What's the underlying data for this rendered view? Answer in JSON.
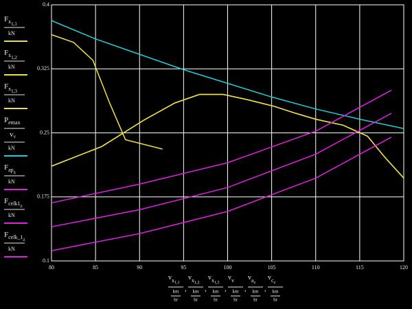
{
  "chart_data": {
    "type": "line",
    "background": "#000000",
    "grid": true,
    "grid_color": "#ffffff",
    "xlim": [
      80,
      120
    ],
    "xticks": [
      80,
      85,
      90,
      95,
      100,
      105,
      110,
      115,
      120
    ],
    "ylim": [
      0.1,
      0.4
    ],
    "yticks": [
      0.1,
      0.175,
      0.25,
      0.325,
      0.4
    ],
    "x_label": [
      {
        "name": "v",
        "subscript": "x",
        "sub_subscript": "1,1",
        "unit_top": "km",
        "unit_bottom": "hr"
      },
      {
        "name": "v",
        "subscript": "x",
        "sub_subscript": "1,2",
        "unit_top": "km",
        "unit_bottom": "hr"
      },
      {
        "name": "v",
        "subscript": "x",
        "sub_subscript": "1,3",
        "unit_top": "km",
        "unit_bottom": "hr"
      },
      {
        "name": "v",
        "subscript": "v",
        "unit_top": "km",
        "unit_bottom": "hr"
      },
      {
        "name": "v",
        "subscript": "a",
        "sub_subscript": "z",
        "unit_top": "km",
        "unit_bottom": "hr"
      },
      {
        "name": "v",
        "subscript": "c",
        "sub_subscript": "z",
        "unit_top": "km",
        "unit_bottom": "hr"
      }
    ],
    "x_label_separator": ",",
    "series": [
      {
        "name": "F",
        "subscript": "x",
        "sub_subscript": "1,1",
        "unit": "kN",
        "color": "#f0e040",
        "x": [
          80,
          82.5,
          84.7,
          86.6,
          88.4,
          92.6
        ],
        "values": [
          0.365,
          0.356,
          0.335,
          0.285,
          0.242,
          0.231
        ]
      },
      {
        "name": "F",
        "subscript": "x",
        "sub_subscript": "1,2",
        "unit": "kN",
        "color": "#f0e040",
        "x": [
          80,
          85.7,
          90.5,
          94,
          96.8,
          99.5,
          102.2,
          105.3,
          107.7,
          110,
          113.1,
          115.9,
          117.8,
          120
        ],
        "values": [
          0.211,
          0.234,
          0.265,
          0.285,
          0.295,
          0.295,
          0.289,
          0.281,
          0.273,
          0.266,
          0.259,
          0.246,
          0.222,
          0.197
        ]
      },
      {
        "name": "F",
        "subscript": "x",
        "sub_subscript": "1,3",
        "unit": "kN",
        "color": "#f0e040",
        "x": [
          80,
          85.7,
          90.5,
          94,
          96.8,
          99.5,
          102.2,
          105.3,
          107.7,
          110,
          113.1,
          115.9,
          117.8,
          120
        ],
        "values": [
          0.211,
          0.234,
          0.265,
          0.285,
          0.295,
          0.295,
          0.289,
          0.281,
          0.273,
          0.266,
          0.259,
          0.246,
          0.222,
          0.197
        ]
      },
      {
        "name": "P",
        "subscript": "emax",
        "divisor": "v",
        "divisor_subscript": "v",
        "unit": "kN",
        "color": "#20d0d8",
        "x": [
          80,
          85,
          90,
          95,
          100,
          105,
          110,
          115,
          120
        ],
        "values": [
          0.3815,
          0.36,
          0.342,
          0.324,
          0.308,
          0.292,
          0.278,
          0.266,
          0.255
        ]
      },
      {
        "name": "F",
        "subscript": "ap",
        "sub_subscript": "z",
        "unit": "kN",
        "color": "#e020e0",
        "x": [
          80,
          90,
          100,
          110,
          118.6
        ],
        "values": [
          0.168,
          0.19,
          0.215,
          0.252,
          0.3
        ]
      },
      {
        "name": "F",
        "subscript": "celk1",
        "sub_subscript": "z",
        "unit": "kN",
        "color": "#e020e0",
        "x": [
          80,
          90,
          100,
          110,
          118.6
        ],
        "values": [
          0.14,
          0.16,
          0.186,
          0.225,
          0.273
        ]
      },
      {
        "name": "F",
        "subscript": "celk_1",
        "sub_subscript": "z",
        "unit": "kN",
        "color": "#e020e0",
        "x": [
          80,
          90,
          100,
          110,
          118.6
        ],
        "values": [
          0.112,
          0.132,
          0.158,
          0.197,
          0.245
        ]
      }
    ]
  }
}
